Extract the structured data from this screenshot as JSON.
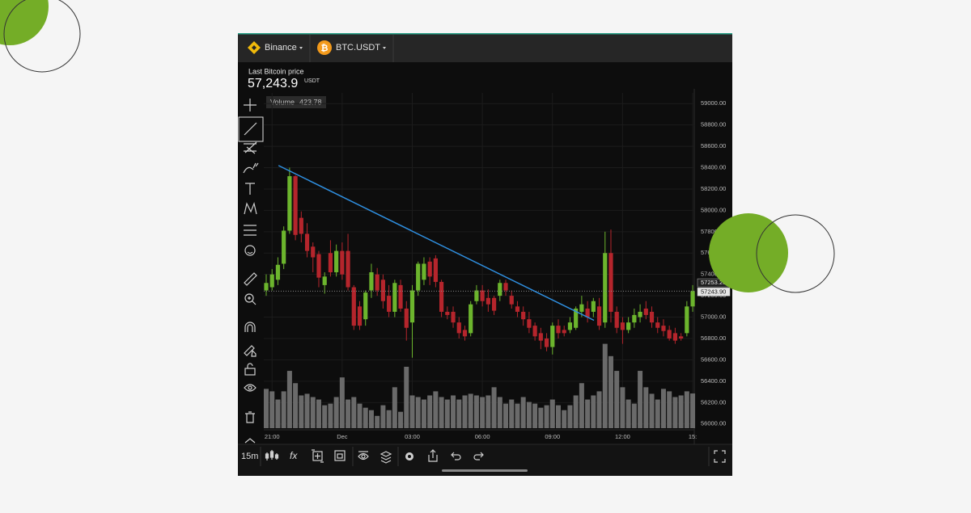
{
  "header": {
    "exchange": "Binance",
    "pair": "BTC.USDT"
  },
  "price_panel": {
    "label": "Last Bitcoin price",
    "price": "57,243.9",
    "unit": "USDT"
  },
  "volume_label": {
    "name": "Volume",
    "value": "423.78"
  },
  "toolbar": {
    "interval": "15m",
    "function": "fx"
  },
  "chart_data": {
    "type": "candlestick",
    "categories": [
      null,
      "21:00",
      null,
      null,
      null,
      null,
      null,
      null,
      null,
      null,
      null,
      null,
      null,
      "Dec",
      null,
      null,
      null,
      null,
      null,
      null,
      null,
      null,
      null,
      null,
      null,
      "03:00",
      null,
      null,
      null,
      null,
      null,
      null,
      null,
      null,
      null,
      null,
      null,
      "06:00",
      null,
      null,
      null,
      null,
      null,
      null,
      null,
      null,
      null,
      null,
      null,
      "09:00",
      null,
      null,
      null,
      null,
      null,
      null,
      null,
      null,
      null,
      null,
      null,
      "12:00",
      null,
      null,
      null,
      null,
      null,
      null,
      null,
      null,
      null,
      null,
      null,
      "15:"
    ],
    "open": [
      57250,
      57280,
      57350,
      57500,
      57810,
      58320,
      57930,
      57780,
      57660,
      57590,
      57300,
      57600,
      57420,
      57620,
      57620,
      57280,
      57100,
      56980,
      57250,
      57400,
      57350,
      57200,
      57050,
      57300,
      57080,
      56950,
      57250,
      57350,
      57520,
      57550,
      57330,
      57050,
      57050,
      56950,
      56880,
      56850,
      57150,
      57250,
      57180,
      57180,
      57200,
      57320,
      57200,
      57100,
      57050,
      56980,
      56920,
      56850,
      56800,
      56720,
      56920,
      56880,
      56880,
      56900,
      57050,
      57080,
      57050,
      57100,
      56950,
      57600,
      57050,
      56950,
      56880,
      56950,
      57000,
      57080,
      57050,
      56950,
      56920,
      56880,
      56850,
      56820,
      56850,
      57100
    ],
    "high": [
      57400,
      57450,
      57560,
      57850,
      58400,
      58330,
      57990,
      57880,
      57700,
      57620,
      57420,
      57720,
      57680,
      57700,
      57780,
      57300,
      57150,
      57250,
      57500,
      57460,
      57400,
      57300,
      57350,
      57350,
      57150,
      57300,
      57520,
      57560,
      57560,
      57580,
      57350,
      57100,
      57100,
      57000,
      56920,
      57150,
      57300,
      57300,
      57260,
      57200,
      57350,
      57350,
      57250,
      57150,
      57100,
      57050,
      56950,
      56900,
      56850,
      56950,
      56980,
      56920,
      57000,
      57100,
      57200,
      57150,
      57180,
      57180,
      57800,
      57820,
      57100,
      57000,
      57000,
      57080,
      57120,
      57150,
      57100,
      57000,
      56980,
      56920,
      56900,
      56850,
      57150,
      57300
    ],
    "low": [
      57200,
      57250,
      57300,
      57450,
      57780,
      57720,
      57700,
      57560,
      57420,
      57280,
      57220,
      57380,
      57380,
      57350,
      57250,
      56880,
      56880,
      56920,
      57180,
      57200,
      57080,
      57000,
      57000,
      57050,
      56780,
      56620,
      57200,
      57300,
      57300,
      57280,
      57000,
      56980,
      56900,
      56800,
      56780,
      56820,
      57120,
      57100,
      57050,
      57020,
      57150,
      57200,
      57080,
      57000,
      56920,
      56850,
      56780,
      56700,
      56680,
      56650,
      56800,
      56820,
      56850,
      56880,
      57000,
      56950,
      57000,
      56880,
      56900,
      56950,
      56850,
      56750,
      56850,
      56900,
      56950,
      56980,
      56900,
      56850,
      56820,
      56780,
      56750,
      56780,
      56820,
      57050
    ],
    "close": [
      57320,
      57400,
      57490,
      57810,
      58320,
      57770,
      57780,
      57620,
      57560,
      57370,
      57380,
      57420,
      57620,
      57400,
      57280,
      56920,
      56920,
      57230,
      57420,
      57250,
      57150,
      57050,
      57320,
      57080,
      56900,
      57250,
      57500,
      57500,
      57380,
      57330,
      57050,
      57020,
      56950,
      56850,
      56820,
      57120,
      57250,
      57150,
      57120,
      57060,
      57320,
      57250,
      57120,
      57050,
      56980,
      56900,
      56820,
      56780,
      56720,
      56920,
      56850,
      56850,
      56950,
      57080,
      57120,
      57000,
      57150,
      56920,
      57600,
      57050,
      56900,
      56880,
      56950,
      57020,
      57050,
      57020,
      56950,
      56900,
      56870,
      56800,
      56780,
      56800,
      57100,
      57243.9
    ],
    "volume": [
      480,
      450,
      350,
      450,
      700,
      550,
      400,
      420,
      380,
      350,
      280,
      300,
      380,
      620,
      350,
      380,
      300,
      250,
      220,
      150,
      280,
      220,
      500,
      200,
      750,
      400,
      380,
      350,
      400,
      450,
      380,
      350,
      400,
      350,
      400,
      420,
      400,
      380,
      400,
      500,
      380,
      300,
      350,
      300,
      380,
      320,
      300,
      250,
      280,
      350,
      280,
      220,
      280,
      400,
      550,
      350,
      400,
      450,
      1030,
      880,
      700,
      500,
      350,
      300,
      700,
      500,
      420,
      350,
      480,
      450,
      380,
      400,
      450,
      423.78
    ],
    "up_color": "#6cb52d",
    "down_color": "#b5252c",
    "volume_color": "#6a6a6a",
    "ylim": [
      55960,
      59100
    ],
    "volume_ylim": [
      0,
      1480
    ],
    "yticks": [
      {
        "value": 59000,
        "label": "59000.00"
      },
      {
        "value": 58800,
        "label": "58800.00"
      },
      {
        "value": 58600,
        "label": "58600.00"
      },
      {
        "value": 58400,
        "label": "58400.00"
      },
      {
        "value": 58200,
        "label": "58200.00"
      },
      {
        "value": 58000,
        "label": "58000.00"
      },
      {
        "value": 57800,
        "label": "57800.00"
      },
      {
        "value": 57600,
        "label": "57600.00"
      },
      {
        "value": 57400,
        "label": "57400.00"
      },
      {
        "value": 57200,
        "label": "57200.00"
      },
      {
        "value": 57000,
        "label": "57000.00"
      },
      {
        "value": 56800,
        "label": "56800.00"
      },
      {
        "value": 56600,
        "label": "56600.00"
      },
      {
        "value": 56400,
        "label": "56400.00"
      },
      {
        "value": 56200,
        "label": "56200.00"
      },
      {
        "value": 56000,
        "label": "56000.00"
      }
    ],
    "price_labels": [
      {
        "value": 57253.2,
        "label": "57253.20"
      },
      {
        "value": 57243.9,
        "label": "57243.90"
      }
    ],
    "trendline": {
      "x": [
        2.1,
        56.1
      ],
      "y": [
        58420,
        56970
      ],
      "color": "#2f8fe0"
    },
    "grid": true
  }
}
